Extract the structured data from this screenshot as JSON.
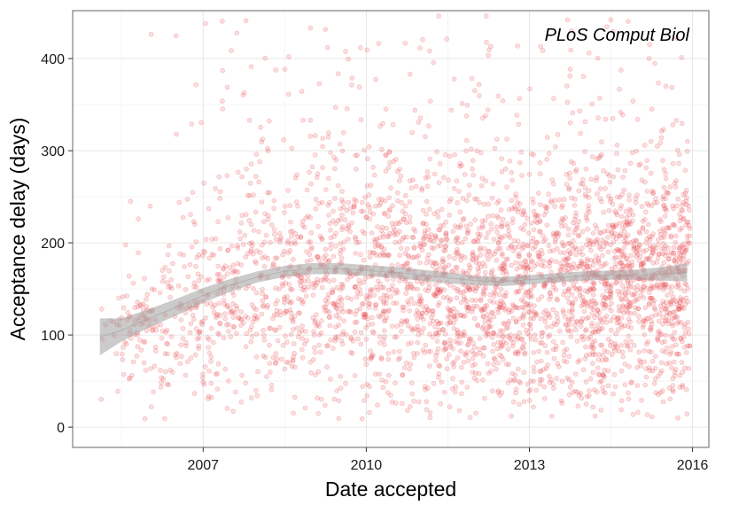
{
  "chart_data": {
    "type": "scatter",
    "title": "",
    "annotation": "PLoS Comput Biol",
    "xlabel": "Date accepted",
    "ylabel": "Acceptance delay (days)",
    "xlim": [
      2004.6,
      2016.3
    ],
    "ylim": [
      -22,
      452
    ],
    "x_ticks": [
      {
        "value": 2007,
        "label": "2007"
      },
      {
        "value": 2010,
        "label": "2010"
      },
      {
        "value": 2013,
        "label": "2013"
      },
      {
        "value": 2016,
        "label": "2016"
      }
    ],
    "y_ticks": [
      {
        "value": 0,
        "label": "0"
      },
      {
        "value": 100,
        "label": "100"
      },
      {
        "value": 200,
        "label": "200"
      },
      {
        "value": 300,
        "label": "300"
      },
      {
        "value": 400,
        "label": "400"
      }
    ],
    "grid": true,
    "point_color": "#e8474c",
    "smooth_color": "#a0a0a0",
    "smooth_fit": [
      {
        "x": 2005.1,
        "y": 98,
        "lower": 78,
        "upper": 118
      },
      {
        "x": 2005.5,
        "y": 105,
        "lower": 93,
        "upper": 118
      },
      {
        "x": 2006.0,
        "y": 118,
        "lower": 108,
        "upper": 128
      },
      {
        "x": 2006.5,
        "y": 130,
        "lower": 121,
        "upper": 139
      },
      {
        "x": 2007.0,
        "y": 143,
        "lower": 135,
        "upper": 151
      },
      {
        "x": 2007.5,
        "y": 154,
        "lower": 147,
        "upper": 161
      },
      {
        "x": 2008.0,
        "y": 163,
        "lower": 157,
        "upper": 169
      },
      {
        "x": 2008.5,
        "y": 169,
        "lower": 163,
        "upper": 175
      },
      {
        "x": 2009.0,
        "y": 172,
        "lower": 166,
        "upper": 178
      },
      {
        "x": 2009.5,
        "y": 172,
        "lower": 166,
        "upper": 178
      },
      {
        "x": 2010.0,
        "y": 170,
        "lower": 164,
        "upper": 176
      },
      {
        "x": 2010.5,
        "y": 168,
        "lower": 162,
        "upper": 174
      },
      {
        "x": 2011.0,
        "y": 165,
        "lower": 159,
        "upper": 171
      },
      {
        "x": 2011.5,
        "y": 162,
        "lower": 156,
        "upper": 168
      },
      {
        "x": 2012.0,
        "y": 159,
        "lower": 154,
        "upper": 164
      },
      {
        "x": 2012.5,
        "y": 158,
        "lower": 153,
        "upper": 163
      },
      {
        "x": 2013.0,
        "y": 160,
        "lower": 155,
        "upper": 165
      },
      {
        "x": 2013.5,
        "y": 162,
        "lower": 157,
        "upper": 167
      },
      {
        "x": 2014.0,
        "y": 164,
        "lower": 159,
        "upper": 169
      },
      {
        "x": 2014.5,
        "y": 165,
        "lower": 160,
        "upper": 170
      },
      {
        "x": 2015.0,
        "y": 165,
        "lower": 160,
        "upper": 171
      },
      {
        "x": 2015.5,
        "y": 166,
        "lower": 159,
        "upper": 174
      },
      {
        "x": 2015.9,
        "y": 168,
        "lower": 158,
        "upper": 178
      }
    ]
  }
}
